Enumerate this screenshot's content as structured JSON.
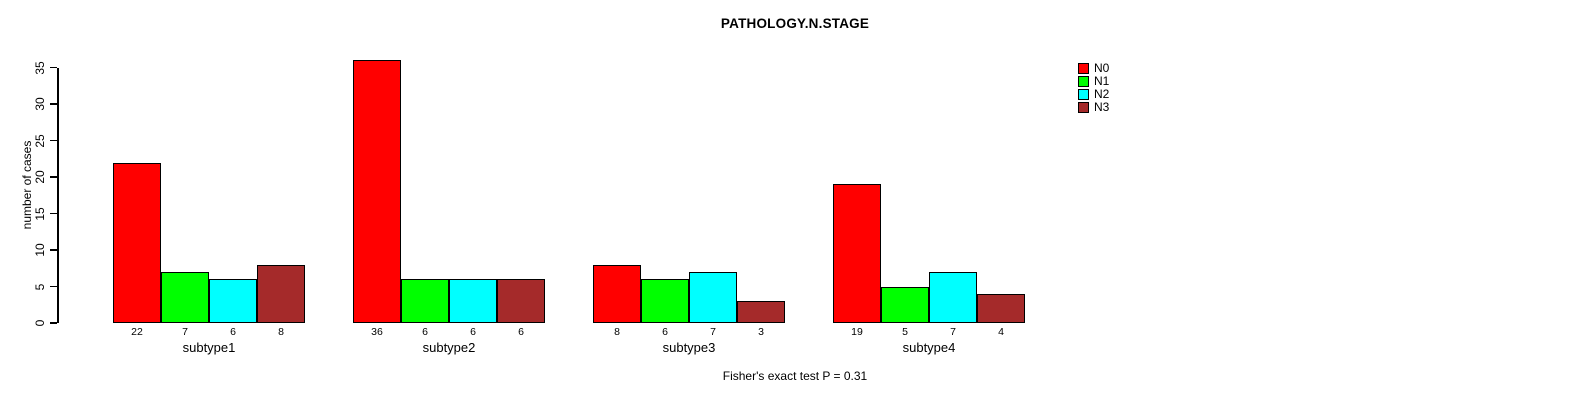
{
  "chart_data": {
    "type": "bar",
    "title": "PATHOLOGY.N.STAGE",
    "ylabel": "number of cases",
    "xlabel": "",
    "ylim": [
      0,
      35
    ],
    "yticks": [
      0,
      5,
      10,
      15,
      20,
      25,
      30,
      35
    ],
    "grid": false,
    "categories": [
      "subtype1",
      "subtype2",
      "subtype3",
      "subtype4"
    ],
    "series": [
      {
        "name": "N0",
        "color": "#FF0000",
        "values": [
          22,
          36,
          8,
          19
        ]
      },
      {
        "name": "N1",
        "color": "#00FF00",
        "values": [
          7,
          6,
          6,
          5
        ]
      },
      {
        "name": "N2",
        "color": "#00FFFF",
        "values": [
          6,
          6,
          7,
          7
        ]
      },
      {
        "name": "N3",
        "color": "#A52A2A",
        "values": [
          8,
          6,
          3,
          4
        ]
      }
    ],
    "bar_value_labels": {
      "subtype1": [
        22,
        7,
        6,
        8
      ],
      "subtype2": [
        36,
        6,
        6,
        6
      ],
      "subtype3": [
        8,
        6,
        7,
        3
      ],
      "subtype4": [
        19,
        5,
        7,
        4
      ]
    },
    "legend": {
      "position": "top-right",
      "entries": [
        "N0",
        "N1",
        "N2",
        "N3"
      ]
    },
    "caption": "Fisher's exact test P = 0.31",
    "colors": {
      "N0": "#FF0000",
      "N1": "#00FF00",
      "N2": "#00FFFF",
      "N3": "#A52A2A",
      "axis": "#000000",
      "background": "#FFFFFF"
    }
  }
}
